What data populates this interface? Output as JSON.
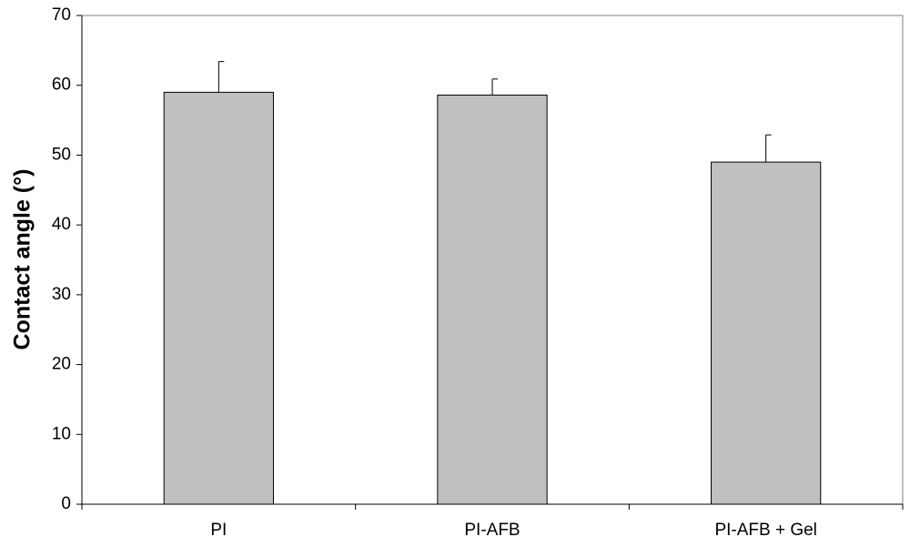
{
  "chart_data": {
    "type": "bar",
    "categories": [
      "PI",
      "PI-AFB",
      "PI-AFB + Gel"
    ],
    "values": [
      59,
      58.6,
      49
    ],
    "errors": [
      4.4,
      2.3,
      3.9
    ],
    "color": "#c0c0c0",
    "y_label": "Contact angle (°)",
    "ylim": [
      0,
      70
    ],
    "yticks": [
      0,
      10,
      20,
      30,
      40,
      50,
      60,
      70
    ]
  }
}
